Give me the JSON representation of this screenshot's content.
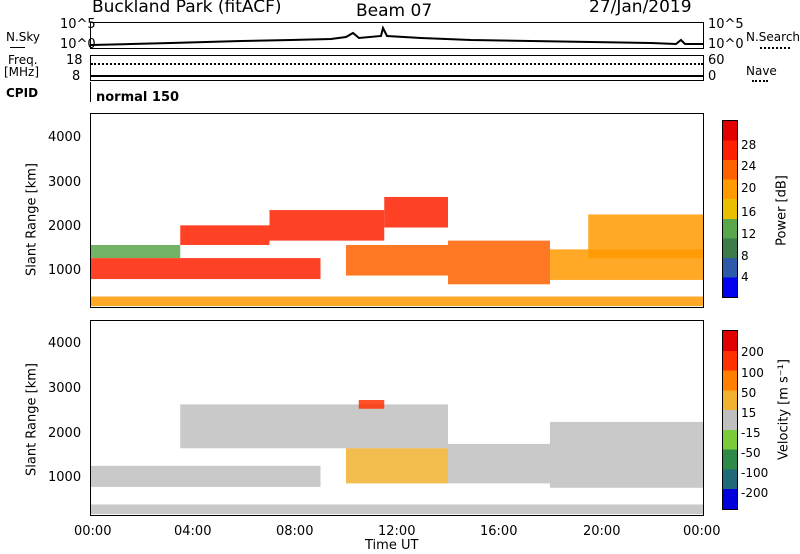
{
  "header": {
    "title": "Buckland Park (fitACF)",
    "beam": "Beam 07",
    "date": "27/Jan/2019"
  },
  "noise_panel": {
    "left_label": "N.Sky",
    "right_label": "N.Search",
    "top_tick_left": "10^5",
    "bottom_tick_left": "10^0",
    "top_tick_right": "10^5",
    "bottom_tick_right": "10^0"
  },
  "freq_panel": {
    "left_label_line1": "Freq.",
    "left_label_line2": "[MHz]",
    "right_label": "Nave",
    "top_tick_left": "18",
    "bottom_tick_left": "8",
    "top_tick_right": "60",
    "bottom_tick_right": "0"
  },
  "cpid_panel": {
    "label": "CPID",
    "mode": "normal 150"
  },
  "power_colorbar": {
    "title": "Power [dB]",
    "ticks": [
      "28",
      "24",
      "20",
      "16",
      "12",
      "8",
      "4"
    ],
    "colors": [
      "#0000ee",
      "#2a5aa8",
      "#3b7c4a",
      "#5aa64a",
      "#e8c000",
      "#ff9a00",
      "#ff6000",
      "#ff2000",
      "#e00000"
    ]
  },
  "velocity_colorbar": {
    "title": "Velocity [m s⁻¹]",
    "ticks": [
      "200",
      "100",
      "50",
      "15",
      "-15",
      "-50",
      "-100",
      "-200"
    ],
    "colors": [
      "#0000dd",
      "#1f6a7a",
      "#2f8a4a",
      "#7acc3a",
      "#bfbfbf",
      "#f0b030",
      "#ff8000",
      "#ff3000",
      "#e00000"
    ]
  },
  "axes": {
    "ylabel": "Slant Range [km]",
    "xlabel": "Time UT",
    "yticks": [
      "4000",
      "3000",
      "2000",
      "1000"
    ],
    "xticks": [
      "00:00",
      "04:00",
      "08:00",
      "12:00",
      "16:00",
      "20:00",
      "00:00"
    ]
  },
  "chart_data": [
    {
      "type": "heatmap",
      "title": "Power [dB]",
      "xlabel": "",
      "ylabel": "Slant Range [km]",
      "xlim": [
        0,
        24
      ],
      "ylim": [
        180,
        4600
      ],
      "series": [
        {
          "t0": 0.0,
          "t1": 24.0,
          "r0": 200,
          "r1": 420,
          "value": 20
        },
        {
          "t0": 0.0,
          "t1": 9.0,
          "r0": 820,
          "r1": 1300,
          "value": 26
        },
        {
          "t0": 0.0,
          "t1": 3.5,
          "r0": 1300,
          "r1": 1600,
          "value": 14
        },
        {
          "t0": 3.5,
          "t1": 7.0,
          "r0": 1600,
          "r1": 2050,
          "value": 25
        },
        {
          "t0": 7.0,
          "t1": 11.5,
          "r0": 1700,
          "r1": 2400,
          "value": 27
        },
        {
          "t0": 11.5,
          "t1": 14.0,
          "r0": 2000,
          "r1": 2700,
          "value": 26
        },
        {
          "t0": 10.0,
          "t1": 14.0,
          "r0": 900,
          "r1": 1600,
          "value": 24
        },
        {
          "t0": 14.0,
          "t1": 18.0,
          "r0": 700,
          "r1": 1700,
          "value": 22
        },
        {
          "t0": 18.0,
          "t1": 24.0,
          "r0": 800,
          "r1": 1500,
          "value": 18
        },
        {
          "t0": 19.5,
          "t1": 24.0,
          "r0": 1300,
          "r1": 2300,
          "value": 20
        }
      ]
    },
    {
      "type": "heatmap",
      "title": "Velocity [m s⁻¹]",
      "xlabel": "Time UT",
      "ylabel": "Slant Range [km]",
      "xlim": [
        0,
        24
      ],
      "ylim": [
        180,
        4600
      ],
      "series": [
        {
          "t0": 0.0,
          "t1": 24.0,
          "r0": 200,
          "r1": 420,
          "value": -20
        },
        {
          "t0": 0.0,
          "t1": 9.0,
          "r0": 820,
          "r1": 1300,
          "value": -5
        },
        {
          "t0": 3.5,
          "t1": 14.0,
          "r0": 1700,
          "r1": 2700,
          "value": -5
        },
        {
          "t0": 10.0,
          "t1": 14.0,
          "r0": 900,
          "r1": 1700,
          "value": 30
        },
        {
          "t0": 14.0,
          "t1": 18.0,
          "r0": 900,
          "r1": 1800,
          "value": -5
        },
        {
          "t0": 18.0,
          "t1": 24.0,
          "r0": 800,
          "r1": 2300,
          "value": -5
        },
        {
          "t0": 10.5,
          "t1": 11.5,
          "r0": 2600,
          "r1": 2800,
          "value": 180
        }
      ]
    }
  ]
}
